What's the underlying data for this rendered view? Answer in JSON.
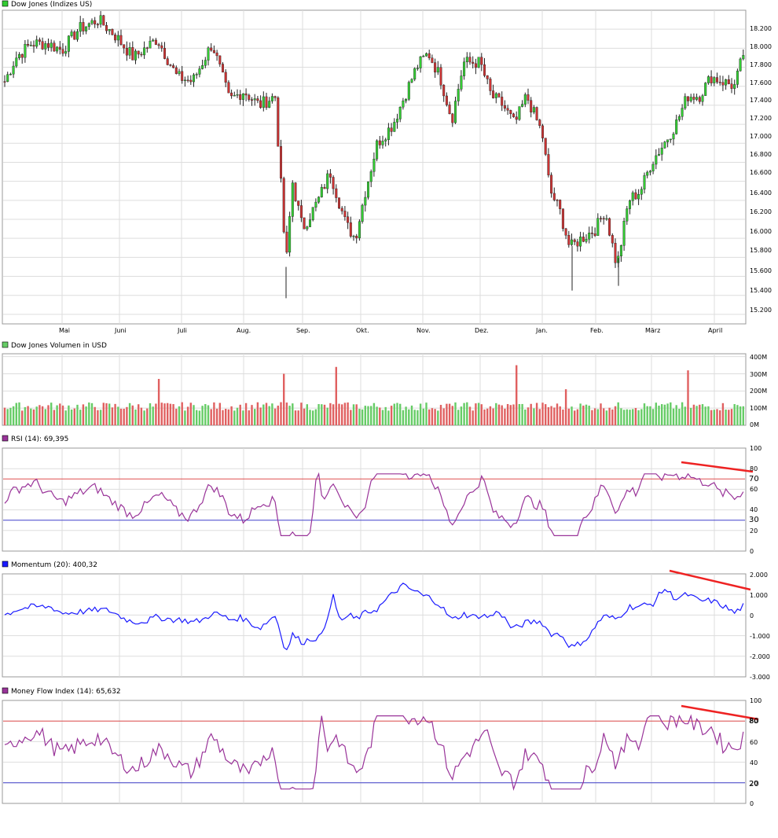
{
  "colors": {
    "up": "#33cc33",
    "down": "#cc3333",
    "vol_up": "#66cc66",
    "vol_down": "#e06060",
    "rsi_line": "#993399",
    "momentum_line": "#1a1aff",
    "mfi_line": "#993399",
    "upper_band": "#e05050",
    "lower_band": "#4040cc",
    "trendline": "#ee2222",
    "grid": "#dddddd"
  },
  "chart_data": [
    {
      "type": "candlestick",
      "title": "Dow Jones (Indizes US)",
      "months": [
        "Mai",
        "Juni",
        "Juli",
        "Aug.",
        "Sep.",
        "Okt.",
        "Nov.",
        "Dez.",
        "Jan.",
        "Feb.",
        "März",
        "April"
      ],
      "yticks": [
        "18.200",
        "18.000",
        "17.800",
        "17.600",
        "17.400",
        "17.200",
        "17.000",
        "16.800",
        "16.600",
        "16.400",
        "16.200",
        "16.000",
        "15.800",
        "15.600",
        "15.400",
        "15.200"
      ],
      "ylim": [
        15100,
        18400
      ],
      "series_approx": [
        {
          "m": "Mai",
          "v": 18000
        },
        {
          "m": "Juni",
          "v": 18100
        },
        {
          "m": "Juli",
          "v": 17700
        },
        {
          "m": "Aug.",
          "v": 17500
        },
        {
          "m": "Sep.",
          "v": 16100
        },
        {
          "m": "Okt.",
          "v": 16300
        },
        {
          "m": "Nov.",
          "v": 17800
        },
        {
          "m": "Dez.",
          "v": 17800
        },
        {
          "m": "Jan.",
          "v": 17300
        },
        {
          "m": "Feb.",
          "v": 16000
        },
        {
          "m": "März",
          "v": 16700
        },
        {
          "m": "April",
          "v": 17700
        },
        {
          "m": "end",
          "v": 17980
        }
      ],
      "grid": true
    },
    {
      "type": "bar",
      "title": "Dow Jones Volumen in USD",
      "yticks": [
        "400M",
        "300M",
        "200M",
        "100M",
        "0M"
      ],
      "ylim": [
        0,
        400
      ],
      "spikes_approx": [
        {
          "m": "Aug.",
          "v": 270
        },
        {
          "m": "Sep.",
          "v": 300
        },
        {
          "m": "Okt.",
          "v": 340
        },
        {
          "m": "Jan.",
          "v": 350
        },
        {
          "m": "Feb.",
          "v": 210
        },
        {
          "m": "März",
          "v": 320
        }
      ]
    },
    {
      "type": "line",
      "title": "RSI (14): 69,395",
      "yticks": [
        "100",
        "80",
        "60",
        "40",
        "20",
        "0"
      ],
      "bands": [
        "70",
        "30"
      ],
      "ylim": [
        0,
        100
      ],
      "grid": true
    },
    {
      "type": "line",
      "title": "Momentum (20): 400,32",
      "yticks": [
        "2.000",
        "1.000",
        "0",
        "-1.000",
        "-2.000",
        "-3.000"
      ],
      "ylim": [
        -3000,
        2000
      ],
      "grid": true
    },
    {
      "type": "line",
      "title": "Money Flow Index (14): 65,632",
      "yticks": [
        "100",
        "80",
        "60",
        "40",
        "20",
        "0"
      ],
      "bands": [
        "80",
        "20"
      ],
      "ylim": [
        0,
        100
      ],
      "grid": true
    }
  ]
}
